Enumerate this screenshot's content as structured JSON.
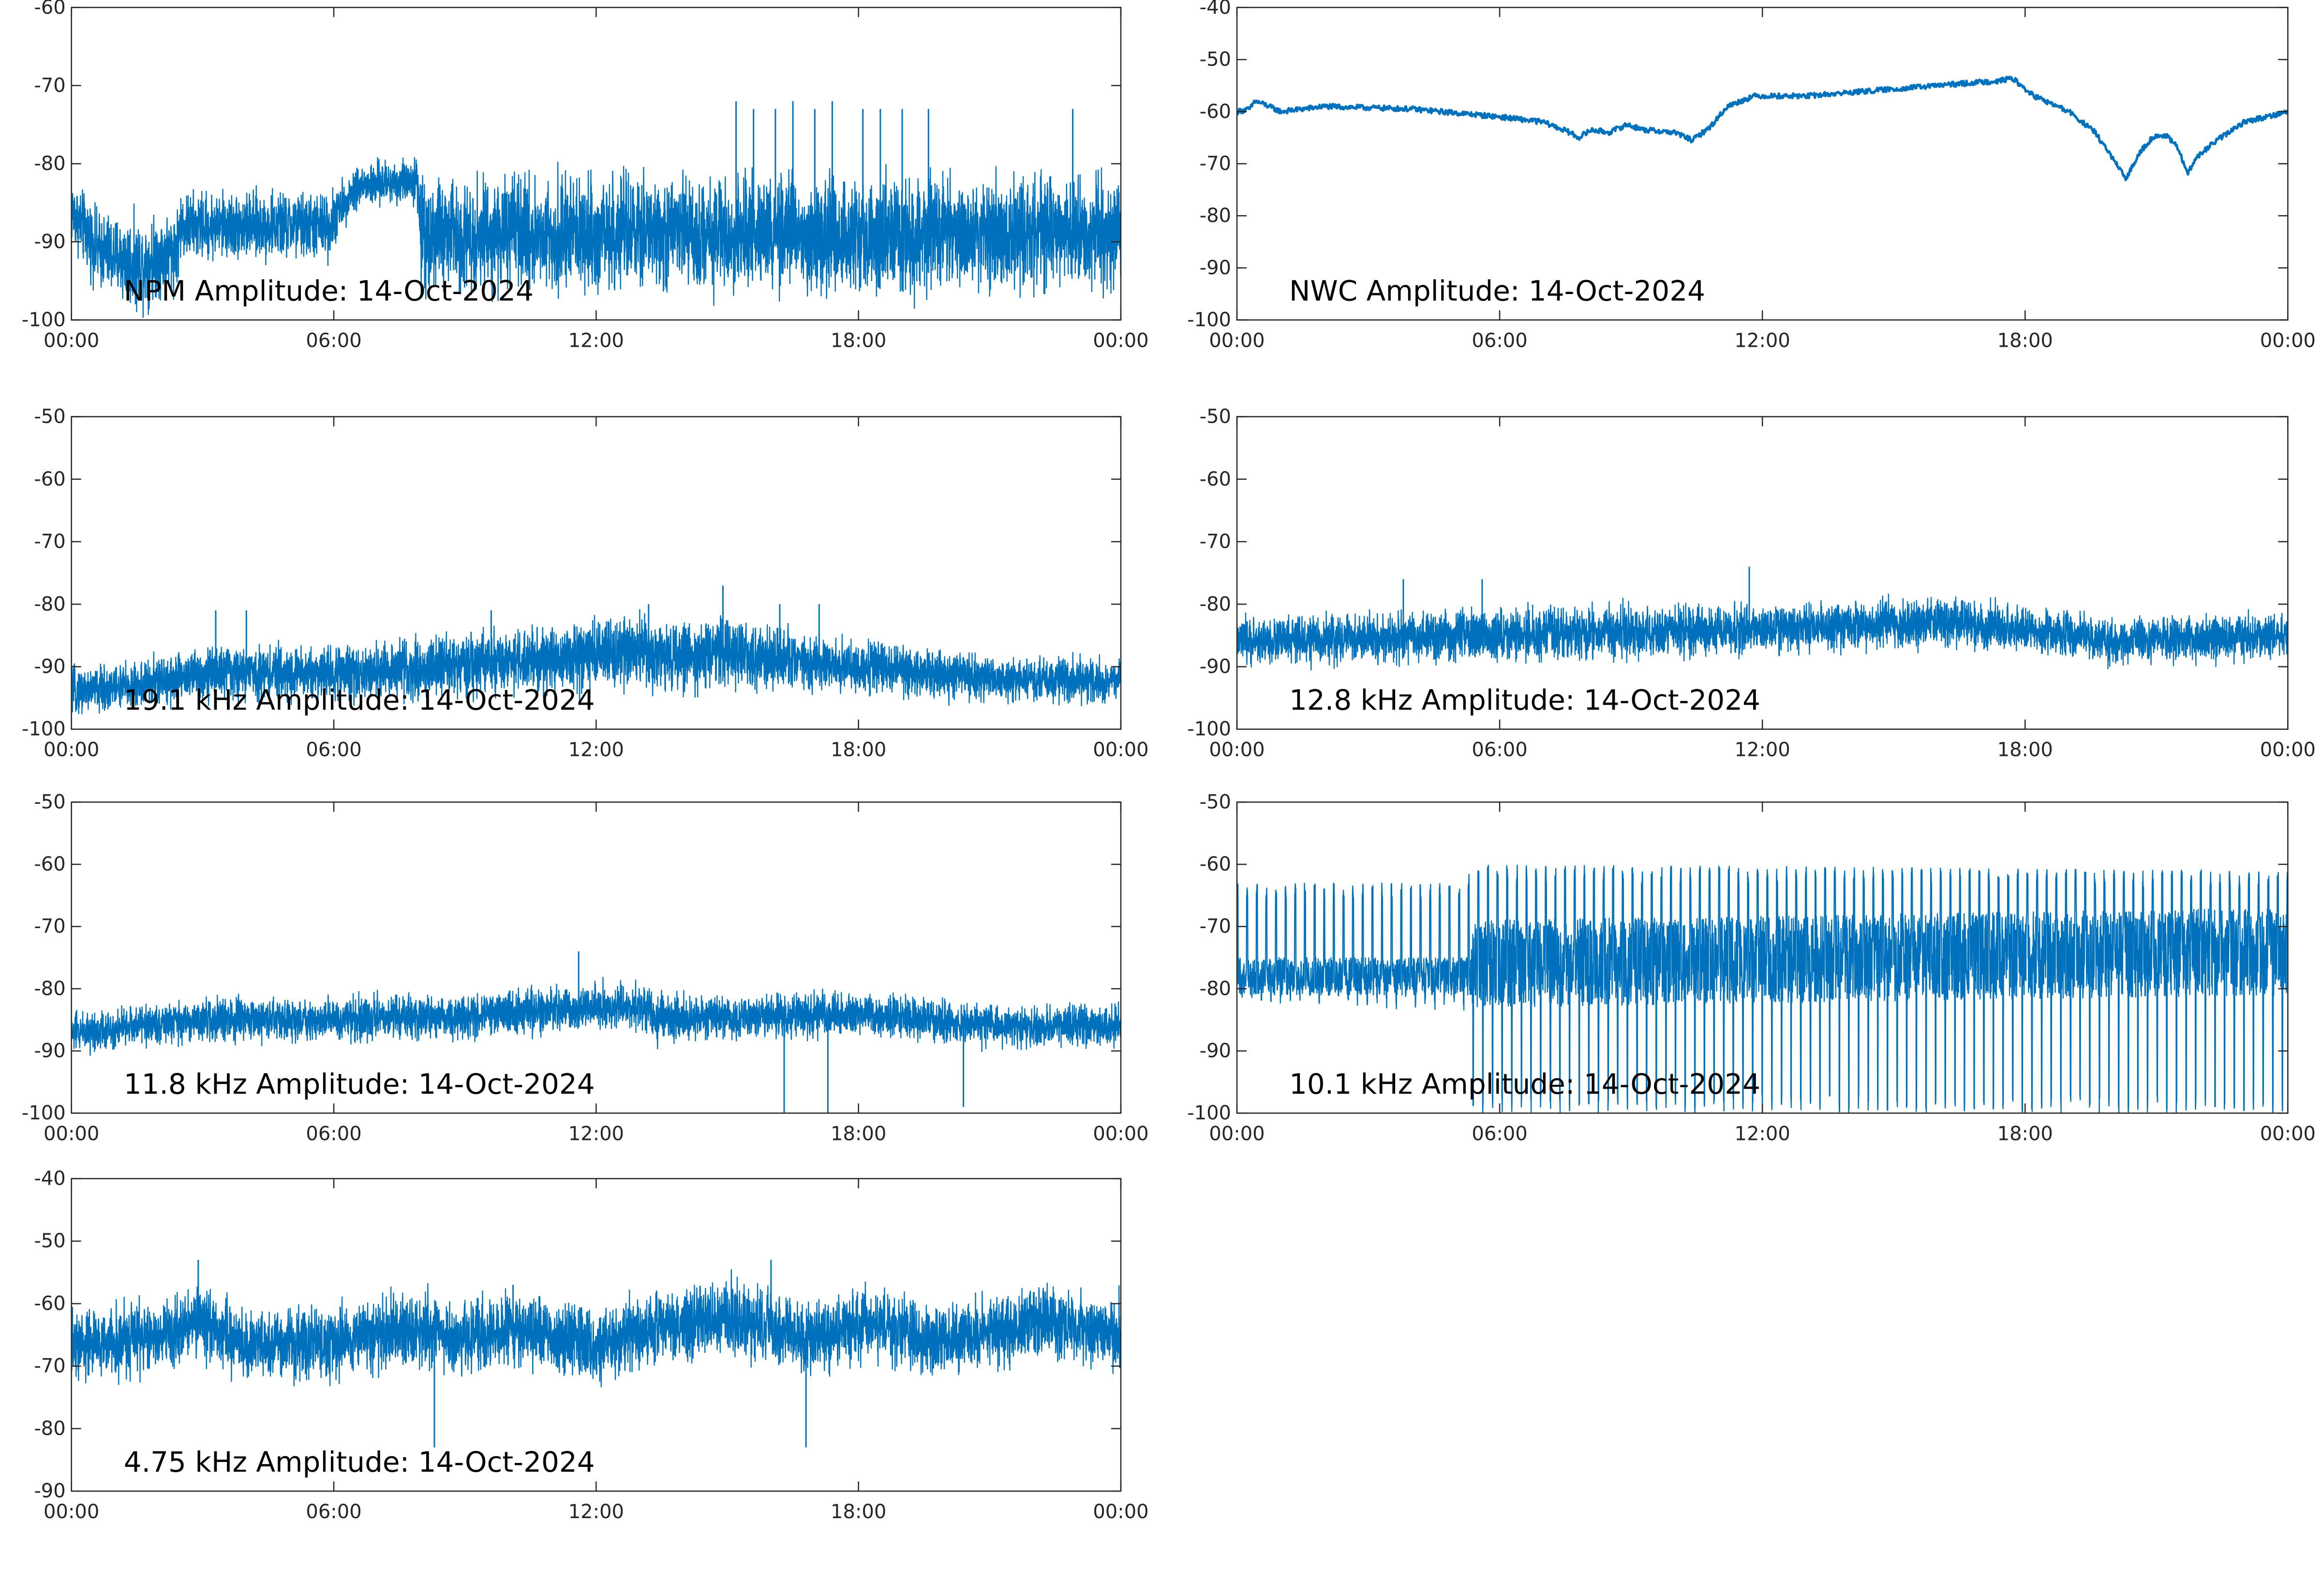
{
  "colors": {
    "series": "#0072bd",
    "axis": "#262626",
    "background": "#ffffff"
  },
  "chart_data": [
    {
      "type": "line",
      "title": "NPM Amplitude: 14-Oct-2024",
      "xlabel": "",
      "ylabel": "",
      "x_ticks": [
        "00:00",
        "06:00",
        "12:00",
        "18:00",
        "00:00"
      ],
      "x_range_hours": [
        0,
        24
      ],
      "y_ticks": [
        -60,
        -70,
        -80,
        -90,
        -100
      ],
      "ylim": [
        -100,
        -60
      ],
      "grid": false,
      "series": [
        {
          "style": "noisy",
          "baseline": [
            [
              0,
              -86
            ],
            [
              0.6,
              -91
            ],
            [
              1.5,
              -93
            ],
            [
              2.4,
              -91
            ],
            [
              2.5,
              -88
            ],
            [
              5.9,
              -88
            ],
            [
              6.1,
              -86
            ],
            [
              6.5,
              -83
            ],
            [
              7.9,
              -82
            ],
            [
              8.0,
              -89
            ],
            [
              24,
              -89
            ]
          ],
          "spread": [
            [
              0,
              6
            ],
            [
              1.5,
              8
            ],
            [
              2.4,
              7
            ],
            [
              2.5,
              6
            ],
            [
              6.0,
              6
            ],
            [
              6.1,
              4
            ],
            [
              7.9,
              4
            ],
            [
              8.0,
              10
            ],
            [
              24,
              10
            ]
          ],
          "spikes": [
            [
              15.2,
              -72
            ],
            [
              15.6,
              -73
            ],
            [
              16.1,
              -73
            ],
            [
              16.5,
              -72
            ],
            [
              17.0,
              -73
            ],
            [
              17.4,
              -72
            ],
            [
              18.1,
              -73
            ],
            [
              18.5,
              -73
            ],
            [
              19.0,
              -73
            ],
            [
              19.6,
              -73
            ],
            [
              22.9,
              -73
            ]
          ]
        }
      ]
    },
    {
      "type": "line",
      "title": "NWC Amplitude: 14-Oct-2024",
      "xlabel": "",
      "ylabel": "",
      "x_ticks": [
        "00:00",
        "06:00",
        "12:00",
        "18:00",
        "00:00"
      ],
      "x_range_hours": [
        0,
        24
      ],
      "y_ticks": [
        -40,
        -50,
        -60,
        -70,
        -80,
        -90,
        -100
      ],
      "ylim": [
        -100,
        -40
      ],
      "grid": false,
      "series": [
        {
          "style": "smooth",
          "baseline": [
            [
              0,
              -60
            ],
            [
              0.3,
              -59.5
            ],
            [
              0.4,
              -58
            ],
            [
              0.6,
              -58.5
            ],
            [
              1.0,
              -60
            ],
            [
              2.0,
              -59
            ],
            [
              4.0,
              -59.5
            ],
            [
              6.0,
              -61
            ],
            [
              7.0,
              -62
            ],
            [
              7.6,
              -64
            ],
            [
              7.8,
              -65
            ],
            [
              8.1,
              -63.5
            ],
            [
              8.5,
              -64
            ],
            [
              8.9,
              -62.5
            ],
            [
              9.3,
              -63.5
            ],
            [
              10.0,
              -64
            ],
            [
              10.4,
              -65.5
            ],
            [
              10.8,
              -63
            ],
            [
              11.2,
              -59
            ],
            [
              11.8,
              -57
            ],
            [
              13.0,
              -57
            ],
            [
              14.5,
              -56
            ],
            [
              16.0,
              -55
            ],
            [
              17.5,
              -54
            ],
            [
              17.7,
              -53.5
            ],
            [
              17.9,
              -55
            ],
            [
              18.2,
              -57
            ],
            [
              19.0,
              -60
            ],
            [
              19.6,
              -64
            ],
            [
              20.0,
              -69
            ],
            [
              20.3,
              -73
            ],
            [
              20.6,
              -68
            ],
            [
              20.9,
              -65
            ],
            [
              21.2,
              -64.5
            ],
            [
              21.5,
              -67
            ],
            [
              21.7,
              -72
            ],
            [
              21.9,
              -69
            ],
            [
              22.3,
              -66
            ],
            [
              23.0,
              -62
            ],
            [
              24,
              -60
            ]
          ],
          "spread": [
            [
              0,
              1
            ],
            [
              24,
              1
            ]
          ],
          "spikes": []
        }
      ]
    },
    {
      "type": "line",
      "title": "19.1 kHz Amplitude: 14-Oct-2024",
      "xlabel": "",
      "ylabel": "",
      "x_ticks": [
        "00:00",
        "06:00",
        "12:00",
        "18:00",
        "00:00"
      ],
      "x_range_hours": [
        0,
        24
      ],
      "y_ticks": [
        -50,
        -60,
        -70,
        -80,
        -90,
        -100
      ],
      "ylim": [
        -100,
        -50
      ],
      "grid": false,
      "series": [
        {
          "style": "noisy",
          "baseline": [
            [
              0,
              -94
            ],
            [
              1.5,
              -93
            ],
            [
              3,
              -91
            ],
            [
              6,
              -91
            ],
            [
              9,
              -90
            ],
            [
              12,
              -88
            ],
            [
              15,
              -88
            ],
            [
              18,
              -90
            ],
            [
              21,
              -92
            ],
            [
              24,
              -92
            ]
          ],
          "spread": [
            [
              0,
              5
            ],
            [
              3,
              6
            ],
            [
              6,
              6
            ],
            [
              9,
              7
            ],
            [
              12,
              8
            ],
            [
              15,
              8
            ],
            [
              18,
              6
            ],
            [
              21,
              5
            ],
            [
              24,
              5
            ]
          ],
          "spikes": [
            [
              3.3,
              -81
            ],
            [
              4.0,
              -81
            ],
            [
              9.6,
              -81
            ],
            [
              13.2,
              -80
            ],
            [
              14.9,
              -77
            ],
            [
              16.2,
              -80
            ],
            [
              17.1,
              -80
            ]
          ]
        }
      ]
    },
    {
      "type": "line",
      "title": "12.8 kHz Amplitude: 14-Oct-2024",
      "xlabel": "",
      "ylabel": "",
      "x_ticks": [
        "00:00",
        "06:00",
        "12:00",
        "18:00",
        "00:00"
      ],
      "x_range_hours": [
        0,
        24
      ],
      "y_ticks": [
        -50,
        -60,
        -70,
        -80,
        -90,
        -100
      ],
      "ylim": [
        -100,
        -50
      ],
      "grid": false,
      "series": [
        {
          "style": "noisy",
          "baseline": [
            [
              0,
              -86
            ],
            [
              6,
              -85
            ],
            [
              12,
              -84
            ],
            [
              16,
              -83
            ],
            [
              18,
              -84
            ],
            [
              20,
              -86
            ],
            [
              24,
              -85
            ]
          ],
          "spread": [
            [
              0,
              5
            ],
            [
              6,
              6
            ],
            [
              12,
              5.5
            ],
            [
              18,
              5
            ],
            [
              24,
              5
            ]
          ],
          "spikes": [
            [
              3.8,
              -76
            ],
            [
              5.6,
              -76
            ],
            [
              11.7,
              -74
            ]
          ]
        }
      ]
    },
    {
      "type": "line",
      "title": "11.8 kHz Amplitude: 14-Oct-2024",
      "xlabel": "",
      "ylabel": "",
      "x_ticks": [
        "00:00",
        "06:00",
        "12:00",
        "18:00",
        "00:00"
      ],
      "x_range_hours": [
        0,
        24
      ],
      "y_ticks": [
        -50,
        -60,
        -70,
        -80,
        -90,
        -100
      ],
      "ylim": [
        -100,
        -50
      ],
      "grid": false,
      "series": [
        {
          "style": "noisy",
          "baseline": [
            [
              0,
              -87
            ],
            [
              3,
              -85
            ],
            [
              6,
              -85
            ],
            [
              10,
              -84
            ],
            [
              12,
              -83
            ],
            [
              13.2,
              -83
            ],
            [
              13.3,
              -85
            ],
            [
              18,
              -84
            ],
            [
              21,
              -86
            ],
            [
              24,
              -86
            ]
          ],
          "spread": [
            [
              0,
              4.5
            ],
            [
              12,
              5
            ],
            [
              24,
              4.5
            ]
          ],
          "spikes": [
            [
              11.6,
              -74
            ],
            [
              16.3,
              -100
            ],
            [
              17.3,
              -100
            ],
            [
              20.4,
              -99
            ]
          ]
        }
      ]
    },
    {
      "type": "line",
      "title": "10.1 kHz Amplitude: 14-Oct-2024",
      "xlabel": "",
      "ylabel": "",
      "x_ticks": [
        "00:00",
        "06:00",
        "12:00",
        "18:00",
        "00:00"
      ],
      "x_range_hours": [
        0,
        24
      ],
      "y_ticks": [
        -50,
        -60,
        -70,
        -80,
        -90,
        -100
      ],
      "ylim": [
        -100,
        -50
      ],
      "grid": false,
      "series": [
        {
          "style": "pulsed",
          "baseline": [
            [
              0,
              -78
            ],
            [
              5.3,
              -78
            ],
            [
              5.4,
              -76
            ],
            [
              24,
              -74
            ]
          ],
          "spread": [
            [
              0,
              3
            ],
            [
              5.3,
              3
            ],
            [
              5.4,
              7
            ],
            [
              24,
              7
            ]
          ],
          "pulse_high": [
            [
              0,
              -66
            ],
            [
              5.2,
              -66
            ],
            [
              5.4,
              -63
            ],
            [
              24,
              -64
            ]
          ],
          "pulse_low": [
            [
              0,
              -82
            ],
            [
              5.2,
              -84
            ],
            [
              5.4,
              -100
            ],
            [
              24,
              -100
            ]
          ],
          "pulse_period_hours": 0.22,
          "spikes": []
        }
      ]
    },
    {
      "type": "line",
      "title": "4.75 kHz Amplitude: 14-Oct-2024",
      "xlabel": "",
      "ylabel": "",
      "x_ticks": [
        "00:00",
        "06:00",
        "12:00",
        "18:00",
        "00:00"
      ],
      "x_range_hours": [
        0,
        24
      ],
      "y_ticks": [
        -40,
        -50,
        -60,
        -70,
        -80,
        -90
      ],
      "ylim": [
        -90,
        -40
      ],
      "grid": false,
      "series": [
        {
          "style": "noisy",
          "baseline": [
            [
              0,
              -67
            ],
            [
              2,
              -65
            ],
            [
              3,
              -63
            ],
            [
              4,
              -67
            ],
            [
              6,
              -66
            ],
            [
              8,
              -64
            ],
            [
              9,
              -66
            ],
            [
              10,
              -64
            ],
            [
              12,
              -67
            ],
            [
              13,
              -64
            ],
            [
              15,
              -62
            ],
            [
              16,
              -64
            ],
            [
              17,
              -66
            ],
            [
              18,
              -63
            ],
            [
              20,
              -66
            ],
            [
              22,
              -63
            ],
            [
              24,
              -65
            ]
          ],
          "spread": [
            [
              0,
              8
            ],
            [
              24,
              8
            ]
          ],
          "spikes": [
            [
              2.9,
              -53
            ],
            [
              8.3,
              -83
            ],
            [
              10.1,
              -57
            ],
            [
              16.0,
              -53
            ],
            [
              16.8,
              -83
            ]
          ]
        }
      ]
    }
  ]
}
